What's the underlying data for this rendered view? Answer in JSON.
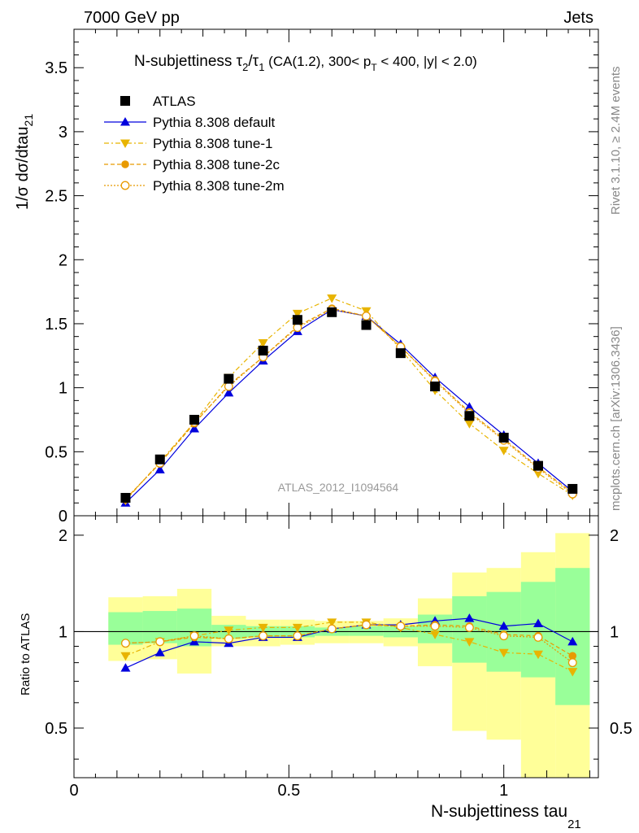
{
  "header": {
    "beam_label": "7000 GeV pp",
    "category_label": "Jets"
  },
  "side_text": {
    "rivet": "Rivet 3.1.10, ≥ 2.4M events",
    "mcplots": "mcplots.cern.ch [arXiv:1306.3436]"
  },
  "chart_data": [
    {
      "type": "line",
      "title": {
        "main": "N-subjettiness τ",
        "t2_sub": "2",
        "slash": "/τ",
        "t1_sub": "1",
        "rest": " (CA(1.2), 300< p",
        "pt_sub": "T",
        "tail": " < 400, |y| < 2.0)"
      },
      "watermark": "ATLAS_2012_I1094564",
      "ylabel": {
        "main": "1/σ dσ/dtau",
        "sub": "21"
      },
      "xlim": [
        0,
        1.22
      ],
      "ylim": [
        0,
        3.8
      ],
      "ytick_labels": [
        "0",
        "0.5",
        "1",
        "1.5",
        "2",
        "2.5",
        "3",
        "3.5"
      ],
      "yticks": [
        0,
        0.5,
        1,
        1.5,
        2,
        2.5,
        3,
        3.5
      ],
      "x": [
        0.12,
        0.2,
        0.28,
        0.36,
        0.44,
        0.52,
        0.6,
        0.68,
        0.76,
        0.84,
        0.92,
        1.0,
        1.08,
        1.16
      ],
      "series": [
        {
          "name": "ATLAS",
          "style": "data",
          "color": "#000000",
          "values": [
            0.14,
            0.44,
            0.75,
            1.07,
            1.29,
            1.53,
            1.59,
            1.49,
            1.27,
            1.01,
            0.78,
            0.61,
            0.39,
            0.21
          ]
        },
        {
          "name": "Pythia 8.308 default",
          "style": "solid-triangle-up",
          "color": "#0000dd",
          "values": [
            0.1,
            0.36,
            0.68,
            0.96,
            1.21,
            1.44,
            1.61,
            1.56,
            1.34,
            1.08,
            0.85,
            0.63,
            0.41,
            0.19
          ]
        },
        {
          "name": "Pythia 8.308 tune-1",
          "style": "dashdot-triangle-down",
          "color": "#e8b400",
          "values": [
            0.12,
            0.42,
            0.73,
            1.08,
            1.35,
            1.58,
            1.7,
            1.6,
            1.3,
            0.98,
            0.72,
            0.51,
            0.33,
            0.16
          ]
        },
        {
          "name": "Pythia 8.308 tune-2c",
          "style": "dashed-circle-filled",
          "color": "#e89a00",
          "values": [
            0.13,
            0.41,
            0.72,
            1.02,
            1.24,
            1.48,
            1.62,
            1.56,
            1.32,
            1.06,
            0.81,
            0.6,
            0.38,
            0.18
          ]
        },
        {
          "name": "Pythia 8.308 tune-2m",
          "style": "dotted-circle-open",
          "color": "#e89a00",
          "values": [
            0.13,
            0.41,
            0.73,
            1.01,
            1.24,
            1.47,
            1.61,
            1.56,
            1.32,
            1.05,
            0.8,
            0.59,
            0.37,
            0.17
          ]
        }
      ]
    },
    {
      "type": "line",
      "ylabel": "Ratio to ATLAS",
      "xlabel": {
        "main": "N-subjettiness tau",
        "sub": "21"
      },
      "xlim": [
        0,
        1.22
      ],
      "ylim": [
        0.35,
        2.3
      ],
      "xtick_labels": [
        "0",
        "0.5",
        "1"
      ],
      "xticks": [
        0,
        0.5,
        1
      ],
      "ytick_labels": [
        "0.5",
        "1",
        "2"
      ],
      "yticks": [
        0.5,
        1,
        2
      ],
      "reference": 1,
      "bins": [
        [
          0.08,
          0.16
        ],
        [
          0.16,
          0.24
        ],
        [
          0.24,
          0.32
        ],
        [
          0.32,
          0.4
        ],
        [
          0.4,
          0.48
        ],
        [
          0.48,
          0.56
        ],
        [
          0.56,
          0.64
        ],
        [
          0.64,
          0.72
        ],
        [
          0.72,
          0.8
        ],
        [
          0.8,
          0.88
        ],
        [
          0.88,
          0.96
        ],
        [
          0.96,
          1.04
        ],
        [
          1.04,
          1.12
        ],
        [
          1.12,
          1.2
        ]
      ],
      "band_outer": [
        [
          0.81,
          1.28
        ],
        [
          0.82,
          1.29
        ],
        [
          0.74,
          1.36
        ],
        [
          0.9,
          1.12
        ],
        [
          0.9,
          1.09
        ],
        [
          0.91,
          1.09
        ],
        [
          0.92,
          1.08
        ],
        [
          0.92,
          1.08
        ],
        [
          0.9,
          1.1
        ],
        [
          0.78,
          1.27
        ],
        [
          0.49,
          1.53
        ],
        [
          0.46,
          1.58
        ],
        [
          0.35,
          1.77
        ],
        [
          0.35,
          2.03
        ]
      ],
      "band_inner": [
        [
          0.91,
          1.15
        ],
        [
          0.92,
          1.16
        ],
        [
          0.9,
          1.18
        ],
        [
          0.95,
          1.05
        ],
        [
          0.96,
          1.04
        ],
        [
          0.96,
          1.04
        ],
        [
          0.97,
          1.03
        ],
        [
          0.97,
          1.04
        ],
        [
          0.96,
          1.04
        ],
        [
          0.92,
          1.13
        ],
        [
          0.8,
          1.29
        ],
        [
          0.75,
          1.33
        ],
        [
          0.72,
          1.43
        ],
        [
          0.59,
          1.58
        ]
      ],
      "band_colors": {
        "outer": "#ffff99",
        "inner": "#99ff99"
      },
      "x": [
        0.12,
        0.2,
        0.28,
        0.36,
        0.44,
        0.52,
        0.6,
        0.68,
        0.76,
        0.84,
        0.92,
        1.0,
        1.08,
        1.16
      ],
      "series": [
        {
          "name": "Pythia 8.308 default",
          "style": "solid-triangle-up",
          "color": "#0000dd",
          "values": [
            0.77,
            0.86,
            0.93,
            0.92,
            0.96,
            0.96,
            1.02,
            1.05,
            1.05,
            1.08,
            1.1,
            1.04,
            1.06,
            0.93
          ]
        },
        {
          "name": "Pythia 8.308 tune-1",
          "style": "dashdot-triangle-down",
          "color": "#e8b400",
          "values": [
            0.84,
            0.93,
            0.97,
            1.01,
            1.03,
            1.03,
            1.07,
            1.07,
            1.03,
            0.98,
            0.93,
            0.86,
            0.85,
            0.75
          ]
        },
        {
          "name": "Pythia 8.308 tune-2c",
          "style": "dashed-circle-filled",
          "color": "#e89a00",
          "values": [
            0.92,
            0.93,
            0.96,
            0.95,
            0.97,
            0.97,
            1.02,
            1.05,
            1.04,
            1.05,
            1.04,
            0.98,
            0.97,
            0.84
          ]
        },
        {
          "name": "Pythia 8.308 tune-2m",
          "style": "dotted-circle-open",
          "color": "#e89a00",
          "values": [
            0.92,
            0.93,
            0.97,
            0.95,
            0.97,
            0.97,
            1.02,
            1.05,
            1.04,
            1.04,
            1.03,
            0.97,
            0.96,
            0.8
          ]
        }
      ]
    }
  ]
}
